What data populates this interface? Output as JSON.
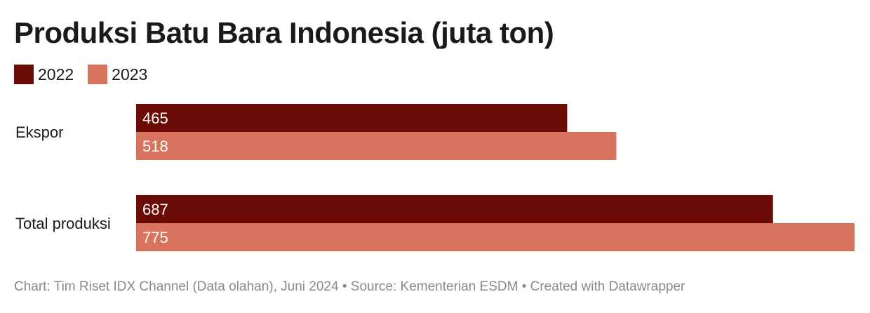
{
  "chart_data": {
    "type": "bar",
    "orientation": "horizontal",
    "title": "Produksi Batu Bara Indonesia (juta ton)",
    "categories": [
      "Ekspor",
      "Total produksi"
    ],
    "series": [
      {
        "name": "2022",
        "values": [
          465,
          687
        ],
        "color": "#6b0b05"
      },
      {
        "name": "2023",
        "values": [
          518,
          775
        ],
        "color": "#d8735f"
      }
    ],
    "xlim": [
      0,
      775
    ],
    "grid": false,
    "legend_position": "top-left",
    "data_labels": true
  },
  "footer": {
    "text": "Chart: Tim Riset IDX Channel (Data olahan), Juni 2024 • Source: Kementerian ESDM • Created with Datawrapper"
  }
}
